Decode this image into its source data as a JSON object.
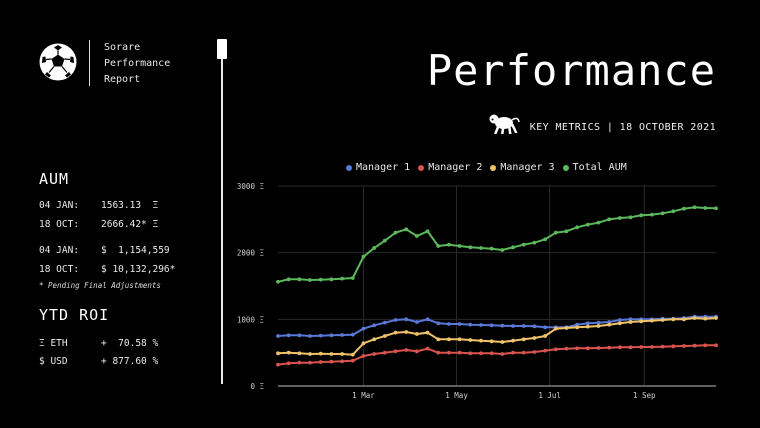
{
  "brand": {
    "lines": [
      "Sorare",
      "Performance",
      "Report"
    ],
    "logo_icon": "soccer-ball-icon"
  },
  "header": {
    "title": "Performance",
    "subtitle": "KEY METRICS | 18 OCTOBER 2021",
    "mascot_icon": "monkey-icon"
  },
  "aum": {
    "title": "AUM",
    "rows": [
      {
        "label": "04 JAN:",
        "value": "1563.13  Ξ"
      },
      {
        "label": "18 OCT:",
        "value": "2666.42* Ξ"
      },
      {
        "label": "04 JAN:",
        "value": "$  1,154,559"
      },
      {
        "label": "18 OCT:",
        "value": "$ 10,132,296*"
      }
    ],
    "footnote": "* Pending Final Adjustments"
  },
  "roi": {
    "title": "YTD ROI",
    "rows": [
      {
        "label": "Ξ ETH",
        "value": "+  70.58 %"
      },
      {
        "label": "$ USD",
        "value": "+ 877.60 %"
      }
    ]
  },
  "chart_data": {
    "type": "line",
    "x_start": "2021-01-04",
    "x_end": "2021-10-18",
    "x_ticks": [
      {
        "label": "1 Mar",
        "date": "2021-03-01"
      },
      {
        "label": "1 May",
        "date": "2021-05-01"
      },
      {
        "label": "1 Jul",
        "date": "2021-07-01"
      },
      {
        "label": "1 Sep",
        "date": "2021-09-01"
      }
    ],
    "y_ticks": [
      {
        "label": "0 Ξ",
        "value": 0
      },
      {
        "label": "1000 Ξ",
        "value": 1000
      },
      {
        "label": "2000 Ξ",
        "value": 2000
      },
      {
        "label": "3000 Ξ",
        "value": 3000
      }
    ],
    "ylim": [
      0,
      3000
    ],
    "grid": true,
    "legend_position": "top",
    "dates": [
      "2021-01-04",
      "2021-01-11",
      "2021-01-18",
      "2021-01-25",
      "2021-02-01",
      "2021-02-08",
      "2021-02-15",
      "2021-02-22",
      "2021-03-01",
      "2021-03-08",
      "2021-03-15",
      "2021-03-22",
      "2021-03-29",
      "2021-04-05",
      "2021-04-12",
      "2021-04-19",
      "2021-04-26",
      "2021-05-03",
      "2021-05-10",
      "2021-05-17",
      "2021-05-24",
      "2021-05-31",
      "2021-06-07",
      "2021-06-14",
      "2021-06-21",
      "2021-06-28",
      "2021-07-05",
      "2021-07-12",
      "2021-07-19",
      "2021-07-26",
      "2021-08-02",
      "2021-08-09",
      "2021-08-16",
      "2021-08-23",
      "2021-08-30",
      "2021-09-06",
      "2021-09-13",
      "2021-09-20",
      "2021-09-27",
      "2021-10-04",
      "2021-10-11",
      "2021-10-18"
    ],
    "series": [
      {
        "name": "Manager 1",
        "color": "#5a78d6",
        "values": [
          750,
          760,
          760,
          750,
          755,
          760,
          765,
          770,
          860,
          910,
          950,
          990,
          1000,
          960,
          1000,
          940,
          930,
          930,
          920,
          915,
          910,
          905,
          900,
          900,
          895,
          880,
          880,
          880,
          920,
          940,
          950,
          960,
          990,
          1000,
          1000,
          1000,
          1010,
          1010,
          1020,
          1040,
          1040,
          1040
        ]
      },
      {
        "name": "Manager 2",
        "color": "#d9534f",
        "values": [
          320,
          340,
          350,
          350,
          360,
          365,
          370,
          380,
          450,
          480,
          500,
          520,
          540,
          520,
          560,
          500,
          500,
          500,
          490,
          490,
          490,
          480,
          500,
          500,
          510,
          530,
          550,
          560,
          565,
          565,
          570,
          575,
          580,
          580,
          585,
          585,
          590,
          595,
          600,
          605,
          610,
          610
        ]
      },
      {
        "name": "Manager 3",
        "color": "#f0c36b",
        "values": [
          490,
          500,
          490,
          480,
          485,
          480,
          480,
          470,
          640,
          700,
          750,
          800,
          810,
          780,
          800,
          700,
          700,
          700,
          690,
          680,
          670,
          660,
          680,
          700,
          720,
          750,
          860,
          870,
          880,
          890,
          900,
          920,
          940,
          960,
          970,
          980,
          990,
          1000,
          1000,
          1020,
          1010,
          1020
        ]
      },
      {
        "name": "Total AUM",
        "color": "#5cb85c",
        "values": [
          1563,
          1600,
          1600,
          1590,
          1595,
          1600,
          1610,
          1620,
          1940,
          2070,
          2180,
          2300,
          2350,
          2250,
          2320,
          2100,
          2120,
          2100,
          2080,
          2070,
          2060,
          2040,
          2080,
          2120,
          2150,
          2200,
          2300,
          2320,
          2380,
          2420,
          2450,
          2500,
          2520,
          2530,
          2560,
          2570,
          2590,
          2620,
          2660,
          2680,
          2670,
          2666.42
        ]
      }
    ]
  }
}
